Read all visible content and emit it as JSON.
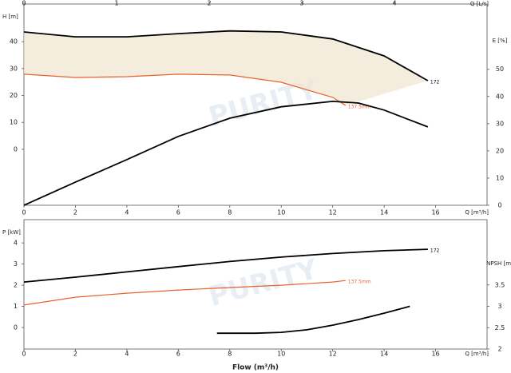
{
  "watermark": "PURITY",
  "chart_data": [
    {
      "type": "line",
      "x_label": "Q [m³/h]",
      "x2_label": "Q [L/s]",
      "y_label": "H [m]",
      "y2_label": "E [%]",
      "xlim": [
        0,
        18
      ],
      "xticks": [
        0,
        2,
        4,
        6,
        8,
        10,
        12,
        14,
        16
      ],
      "x2lim": [
        0,
        5
      ],
      "x2ticks": [
        0,
        1,
        2,
        3,
        4
      ],
      "ylim": [
        -20.8,
        54
      ],
      "yticks": [
        0,
        10,
        20,
        30,
        40
      ],
      "y2lim": [
        0,
        74
      ],
      "y2ticks": [
        0,
        10,
        20,
        30,
        40,
        50
      ],
      "fill_between": [
        0,
        1
      ],
      "fill_color": "#efe6d0",
      "series": [
        {
          "name": "172",
          "color": "#000000",
          "x": [
            0,
            2,
            4,
            6,
            8,
            10,
            12,
            14,
            15.7
          ],
          "values": [
            43.6,
            41.8,
            41.8,
            43,
            44,
            43.6,
            41,
            34.7,
            25.5
          ]
        },
        {
          "name": "137.5mm",
          "color": "#e8622a",
          "x": [
            0,
            2,
            4,
            6,
            8,
            10,
            12,
            12.5
          ],
          "values": [
            27.9,
            26.7,
            27,
            27.9,
            27.6,
            24.9,
            19.3,
            16.3
          ]
        },
        {
          "color": "#000000",
          "axis": "y2",
          "x": [
            0,
            2,
            4,
            6,
            8,
            10,
            12,
            13,
            14,
            15.7
          ],
          "values": [
            0,
            8.5,
            16.8,
            25.3,
            32,
            36.2,
            38.2,
            37.6,
            35,
            28.8
          ]
        }
      ]
    },
    {
      "type": "line",
      "x_label": "Q [m³/h]",
      "x_title": "Flow (m³/h)",
      "y_label": "P [kW]",
      "y2_label": "NPSH [m]",
      "xlim": [
        0,
        18
      ],
      "xticks": [
        0,
        2,
        4,
        6,
        8,
        10,
        12,
        14,
        16
      ],
      "ylim": [
        -1.02,
        5.1
      ],
      "yticks": [
        0,
        1,
        2,
        3,
        4
      ],
      "y2lim": [
        2,
        5.03
      ],
      "y2ticks": [
        2,
        2.5,
        3,
        3.5
      ],
      "series": [
        {
          "name": "172",
          "color": "#000000",
          "x": [
            0,
            2,
            4,
            6,
            8,
            10,
            12,
            14,
            15.7
          ],
          "values": [
            2.15,
            2.38,
            2.63,
            2.88,
            3.12,
            3.33,
            3.5,
            3.63,
            3.7
          ]
        },
        {
          "name": "137.5mm",
          "color": "#e8622a",
          "x": [
            0,
            2,
            4,
            6,
            8,
            10,
            12,
            12.5
          ],
          "values": [
            1.06,
            1.43,
            1.62,
            1.77,
            1.89,
            2,
            2.15,
            2.22
          ]
        },
        {
          "color": "#000000",
          "axis": "y2",
          "x": [
            7.5,
            9,
            10,
            11,
            12,
            13,
            14,
            15
          ],
          "values": [
            2.37,
            2.37,
            2.39,
            2.45,
            2.56,
            2.69,
            2.84,
            3
          ]
        }
      ]
    }
  ]
}
